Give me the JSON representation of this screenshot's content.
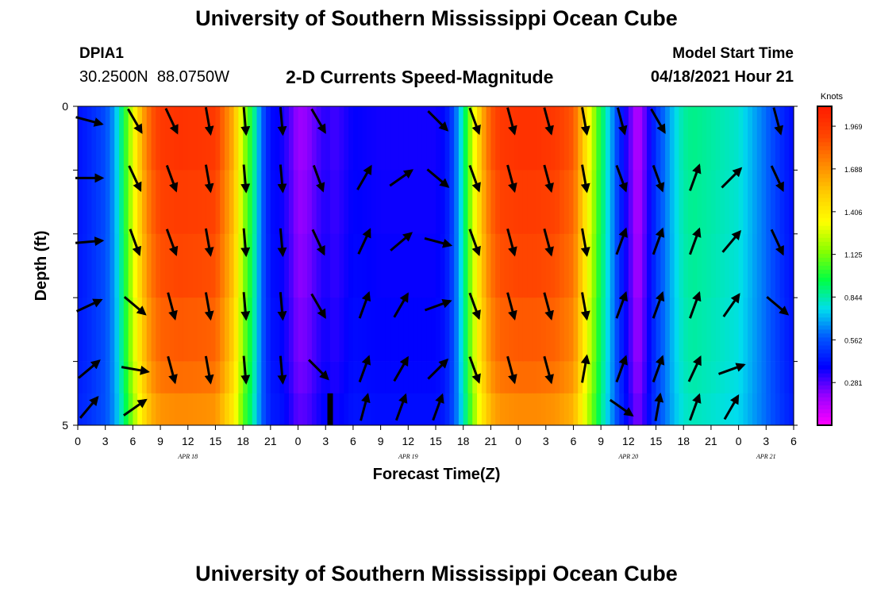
{
  "header": {
    "title": "University of Southern Mississippi Ocean Cube",
    "station_id": "DPIA1",
    "latitude": "30.2500N",
    "longitude": "88.0750W",
    "subtitle": "2-D Currents Speed-Magnitude",
    "model_start_label": "Model Start Time",
    "model_start_value": "04/18/2021 Hour 21"
  },
  "footer": {
    "title": "University of Southern Mississippi Ocean Cube"
  },
  "colors": {
    "scale": [
      "#ff00ff",
      "#9900ff",
      "#0000ff",
      "#0055ff",
      "#00ddee",
      "#00ff44",
      "#88ff00",
      "#ffff00",
      "#ffcc00",
      "#ff8800",
      "#ff4400",
      "#ff1a00"
    ],
    "arrow": "#000000"
  },
  "chart_data": {
    "type": "heatmap",
    "title": "2-D Currents Speed-Magnitude",
    "xlabel": "Forecast Time(Z)",
    "ylabel": "Depth (ft)",
    "units": "Knots",
    "ylim": [
      0,
      5
    ],
    "y_ticks": [
      "0",
      "5"
    ],
    "x_tick_labels": [
      "0",
      "3",
      "6",
      "9",
      "12",
      "15",
      "18",
      "21",
      "0",
      "3",
      "6",
      "9",
      "12",
      "15",
      "18",
      "21",
      "0",
      "3",
      "6",
      "9",
      "12",
      "15",
      "18",
      "21",
      "0",
      "3",
      "6"
    ],
    "x_hours": [
      0,
      3,
      6,
      9,
      12,
      15,
      18,
      21,
      24,
      27,
      30,
      33,
      36,
      39,
      42,
      45,
      48,
      51,
      54,
      57,
      60,
      63,
      66,
      69,
      72,
      75,
      78
    ],
    "date_labels": [
      {
        "label": "APR 18",
        "hour": 12
      },
      {
        "label": "APR 19",
        "hour": 36
      },
      {
        "label": "APR 20",
        "hour": 60
      },
      {
        "label": "APR 21",
        "hour": 75
      }
    ],
    "colorbar": {
      "min": 0,
      "max": 2.1,
      "tick_values": [
        1.969,
        1.688,
        1.406,
        1.125,
        0.844,
        0.562,
        0.281
      ],
      "tick_labels": [
        "1.969",
        "1.688",
        "1.406",
        "1.125",
        "0.844",
        "0.562",
        "0.281"
      ]
    },
    "depth_bins": [
      0,
      1,
      2,
      3,
      4,
      4.5,
      5
    ],
    "speed_profile": {
      "hours": [
        0,
        1,
        2,
        3,
        4,
        5,
        6,
        7,
        8,
        9,
        11,
        13,
        15,
        17,
        18,
        19,
        20,
        21,
        22,
        23,
        24,
        25,
        26,
        27,
        28,
        29,
        30,
        33,
        36,
        39,
        40,
        41,
        42,
        43,
        44,
        45,
        46,
        48,
        50,
        52,
        54,
        55,
        56,
        57,
        58,
        59,
        60,
        61,
        62,
        63,
        64,
        65,
        66,
        67,
        69,
        72,
        75,
        77,
        78
      ],
      "speeds": [
        0.42,
        0.45,
        0.5,
        0.55,
        0.68,
        0.95,
        1.3,
        1.62,
        1.85,
        1.96,
        1.99,
        1.98,
        1.96,
        1.6,
        1.2,
        0.95,
        0.6,
        0.4,
        0.38,
        0.3,
        0.18,
        0.2,
        0.28,
        0.34,
        0.3,
        0.34,
        0.38,
        0.36,
        0.36,
        0.36,
        0.4,
        0.55,
        0.85,
        1.25,
        1.6,
        1.85,
        1.96,
        1.99,
        1.99,
        1.96,
        1.85,
        1.55,
        1.25,
        0.95,
        0.72,
        0.48,
        0.3,
        0.12,
        0.3,
        0.5,
        0.62,
        0.75,
        0.85,
        0.88,
        0.85,
        0.8,
        0.6,
        0.45,
        0.4
      ]
    },
    "depth_scale": [
      1.0,
      0.97,
      0.94,
      0.9,
      0.86,
      0.8
    ],
    "vector_hours": [
      0,
      5,
      9,
      13,
      17,
      21,
      25,
      30,
      34,
      38,
      42,
      46,
      50,
      54,
      58,
      62,
      66,
      70,
      75
    ],
    "vector_rows": [
      {
        "depth": 0.1,
        "angles": [
          15,
          60,
          65,
          80,
          85,
          85,
          60,
          null,
          null,
          45,
          70,
          75,
          75,
          80,
          75,
          60,
          null,
          null,
          75
        ]
      },
      {
        "depth": 1.0,
        "angles": [
          0,
          65,
          70,
          80,
          85,
          85,
          70,
          -60,
          -35,
          40,
          70,
          75,
          75,
          80,
          70,
          70,
          -70,
          -45,
          65
        ]
      },
      {
        "depth": 2.0,
        "angles": [
          -5,
          70,
          70,
          80,
          85,
          85,
          65,
          -65,
          -40,
          15,
          70,
          75,
          75,
          80,
          -70,
          -70,
          -70,
          -50,
          65
        ]
      },
      {
        "depth": 3.0,
        "angles": [
          -25,
          40,
          75,
          80,
          85,
          85,
          60,
          -70,
          -60,
          -20,
          70,
          75,
          75,
          80,
          -70,
          -70,
          -70,
          -55,
          40
        ]
      },
      {
        "depth": 4.0,
        "angles": [
          -40,
          10,
          75,
          80,
          85,
          85,
          45,
          -70,
          -60,
          -45,
          70,
          75,
          75,
          -80,
          -70,
          -70,
          -65,
          -20,
          null
        ]
      },
      {
        "depth": 4.6,
        "angles": [
          -50,
          -35,
          null,
          null,
          null,
          null,
          null,
          -75,
          -70,
          -70,
          null,
          null,
          null,
          null,
          35,
          -80,
          -70,
          -60,
          null
        ]
      }
    ],
    "marker": {
      "hour": 27.5,
      "depth_from": 4.5,
      "depth_to": 5
    }
  }
}
